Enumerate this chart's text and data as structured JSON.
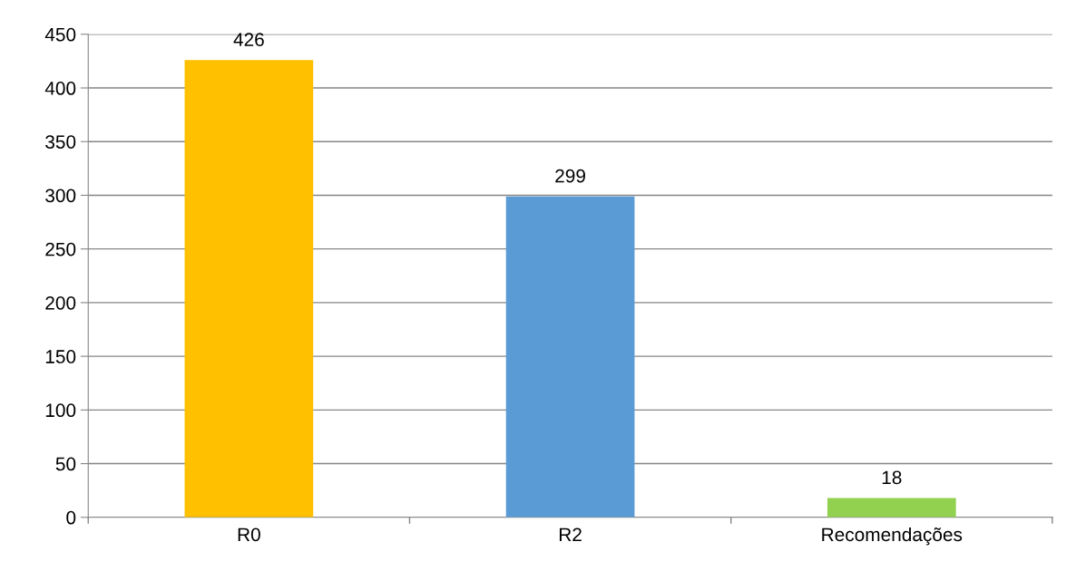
{
  "chart_data": {
    "type": "bar",
    "categories": [
      "R0",
      "R2",
      "Recomendações"
    ],
    "values": [
      426,
      299,
      18
    ],
    "colors": [
      "#ffc000",
      "#5b9bd5",
      "#92d050"
    ],
    "ylim": [
      0,
      450
    ],
    "yticks": [
      0,
      50,
      100,
      150,
      200,
      250,
      300,
      350,
      400,
      450
    ],
    "grid": "y",
    "data_labels": true
  }
}
